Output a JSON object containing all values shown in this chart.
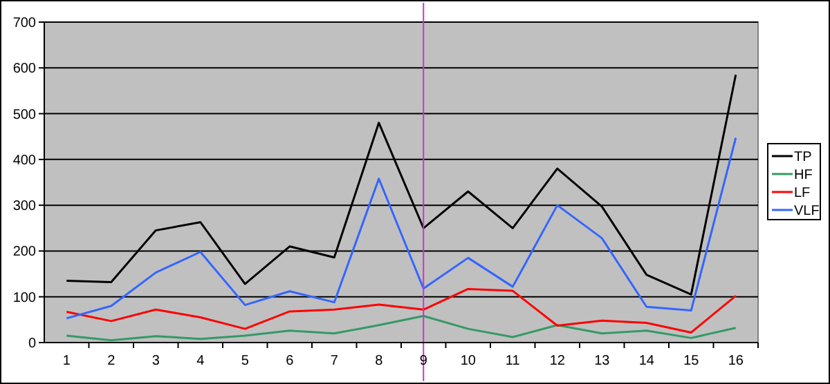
{
  "chart_data": {
    "type": "line",
    "x": [
      1,
      2,
      3,
      4,
      5,
      6,
      7,
      8,
      9,
      10,
      11,
      12,
      13,
      14,
      15,
      16
    ],
    "xlim": [
      0.5,
      16.5
    ],
    "xticks": [
      1,
      2,
      3,
      4,
      5,
      6,
      7,
      8,
      9,
      10,
      11,
      12,
      13,
      14,
      15,
      16
    ],
    "ylim": [
      0,
      700
    ],
    "yticks": [
      0,
      100,
      200,
      300,
      400,
      500,
      600,
      700
    ],
    "grid": "y",
    "legend": "right",
    "marker": "none",
    "line_style": "solid",
    "series": [
      {
        "name": "TP",
        "color": "#000000",
        "values": [
          135,
          132,
          245,
          263,
          128,
          210,
          186,
          480,
          250,
          330,
          250,
          380,
          297,
          148,
          105,
          585
        ]
      },
      {
        "name": "HF",
        "color": "#339966",
        "values": [
          15,
          5,
          14,
          8,
          15,
          26,
          20,
          38,
          58,
          30,
          12,
          38,
          20,
          26,
          10,
          32
        ]
      },
      {
        "name": "LF",
        "color": "#ff0000",
        "values": [
          67,
          47,
          72,
          55,
          30,
          68,
          72,
          83,
          72,
          117,
          113,
          37,
          48,
          43,
          22,
          102
        ]
      },
      {
        "name": "VLF",
        "color": "#3366ff",
        "values": [
          53,
          80,
          153,
          198,
          82,
          112,
          88,
          358,
          118,
          185,
          122,
          300,
          228,
          78,
          70,
          447
        ]
      }
    ],
    "ref_lines": [
      {
        "axis": "x",
        "value": 9,
        "color": "#cc33cc"
      }
    ]
  }
}
